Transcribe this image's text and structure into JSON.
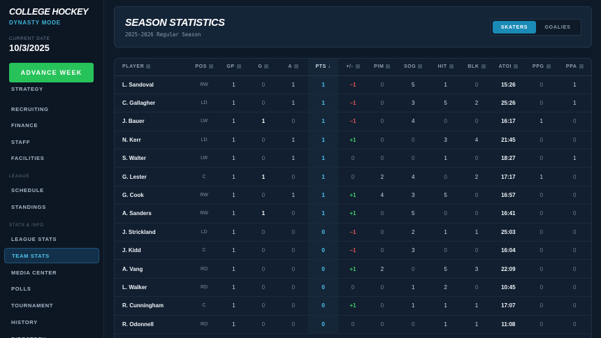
{
  "app": {
    "title": "COLLEGE HOCKEY",
    "subtitle": "DYNASTY MODE",
    "current_date_label": "CURRENT DATE",
    "current_date": "10/3/2025",
    "advance_label": "ADVANCE WEEK"
  },
  "nav": {
    "items_top": [
      "STRATEGY",
      "RECRUITING",
      "FINANCE",
      "STAFF",
      "FACILITIES"
    ],
    "section_league": "LEAGUE",
    "items_league": [
      "SCHEDULE",
      "STANDINGS"
    ],
    "section_stats": "STATS & INFO",
    "items_stats": [
      "LEAGUE STATS",
      "TEAM STATS",
      "MEDIA CENTER",
      "POLLS",
      "TOURNAMENT",
      "HISTORY",
      "DIRECTORY"
    ],
    "active": "TEAM STATS"
  },
  "header": {
    "title": "SEASON STATISTICS",
    "subtitle": "2025-2026 Regular Season",
    "toggle": [
      "SKATERS",
      "GOALIES"
    ],
    "toggle_active": "SKATERS"
  },
  "table": {
    "columns": [
      "PLAYER",
      "POS",
      "GP",
      "G",
      "A",
      "PTS ↓",
      "+/-",
      "PIM",
      "SOG",
      "HIT",
      "BLK",
      "ATOI",
      "PPG",
      "PPA"
    ],
    "rows": [
      [
        "L. Sandoval",
        "RW",
        "1",
        "0",
        "1",
        "1",
        "−1",
        "0",
        "5",
        "1",
        "0",
        "15:26",
        "0",
        "1"
      ],
      [
        "C. Gallagher",
        "LD",
        "1",
        "0",
        "1",
        "1",
        "−1",
        "0",
        "3",
        "5",
        "2",
        "25:26",
        "0",
        "1"
      ],
      [
        "J. Bauer",
        "LW",
        "1",
        "1",
        "0",
        "1",
        "−1",
        "0",
        "4",
        "0",
        "0",
        "16:17",
        "1",
        "0"
      ],
      [
        "N. Kerr",
        "LD",
        "1",
        "0",
        "1",
        "1",
        "+1",
        "0",
        "0",
        "3",
        "4",
        "21:45",
        "0",
        "0"
      ],
      [
        "S. Walter",
        "LW",
        "1",
        "0",
        "1",
        "1",
        "0",
        "0",
        "0",
        "1",
        "0",
        "18:27",
        "0",
        "1"
      ],
      [
        "G. Lester",
        "C",
        "1",
        "1",
        "0",
        "1",
        "0",
        "2",
        "4",
        "0",
        "2",
        "17:17",
        "1",
        "0"
      ],
      [
        "G. Cook",
        "RW",
        "1",
        "0",
        "1",
        "1",
        "+1",
        "4",
        "3",
        "5",
        "0",
        "16:57",
        "0",
        "0"
      ],
      [
        "A. Sanders",
        "RW",
        "1",
        "1",
        "0",
        "1",
        "+1",
        "0",
        "5",
        "0",
        "0",
        "16:41",
        "0",
        "0"
      ],
      [
        "J. Strickland",
        "LD",
        "1",
        "0",
        "0",
        "0",
        "−1",
        "0",
        "2",
        "1",
        "1",
        "25:03",
        "0",
        "0"
      ],
      [
        "J. Kidd",
        "C",
        "1",
        "0",
        "0",
        "0",
        "−1",
        "0",
        "3",
        "0",
        "0",
        "16:04",
        "0",
        "0"
      ],
      [
        "A. Vang",
        "RD",
        "1",
        "0",
        "0",
        "0",
        "+1",
        "2",
        "0",
        "5",
        "3",
        "22:09",
        "0",
        "0"
      ],
      [
        "L. Walker",
        "RD",
        "1",
        "0",
        "0",
        "0",
        "0",
        "0",
        "1",
        "2",
        "0",
        "10:45",
        "0",
        "0"
      ],
      [
        "R. Cunningham",
        "C",
        "1",
        "0",
        "0",
        "0",
        "+1",
        "0",
        "1",
        "1",
        "1",
        "17:07",
        "0",
        "0"
      ],
      [
        "R. Odonnell",
        "RD",
        "1",
        "0",
        "0",
        "0",
        "0",
        "0",
        "0",
        "1",
        "1",
        "11:08",
        "0",
        "0"
      ]
    ]
  }
}
